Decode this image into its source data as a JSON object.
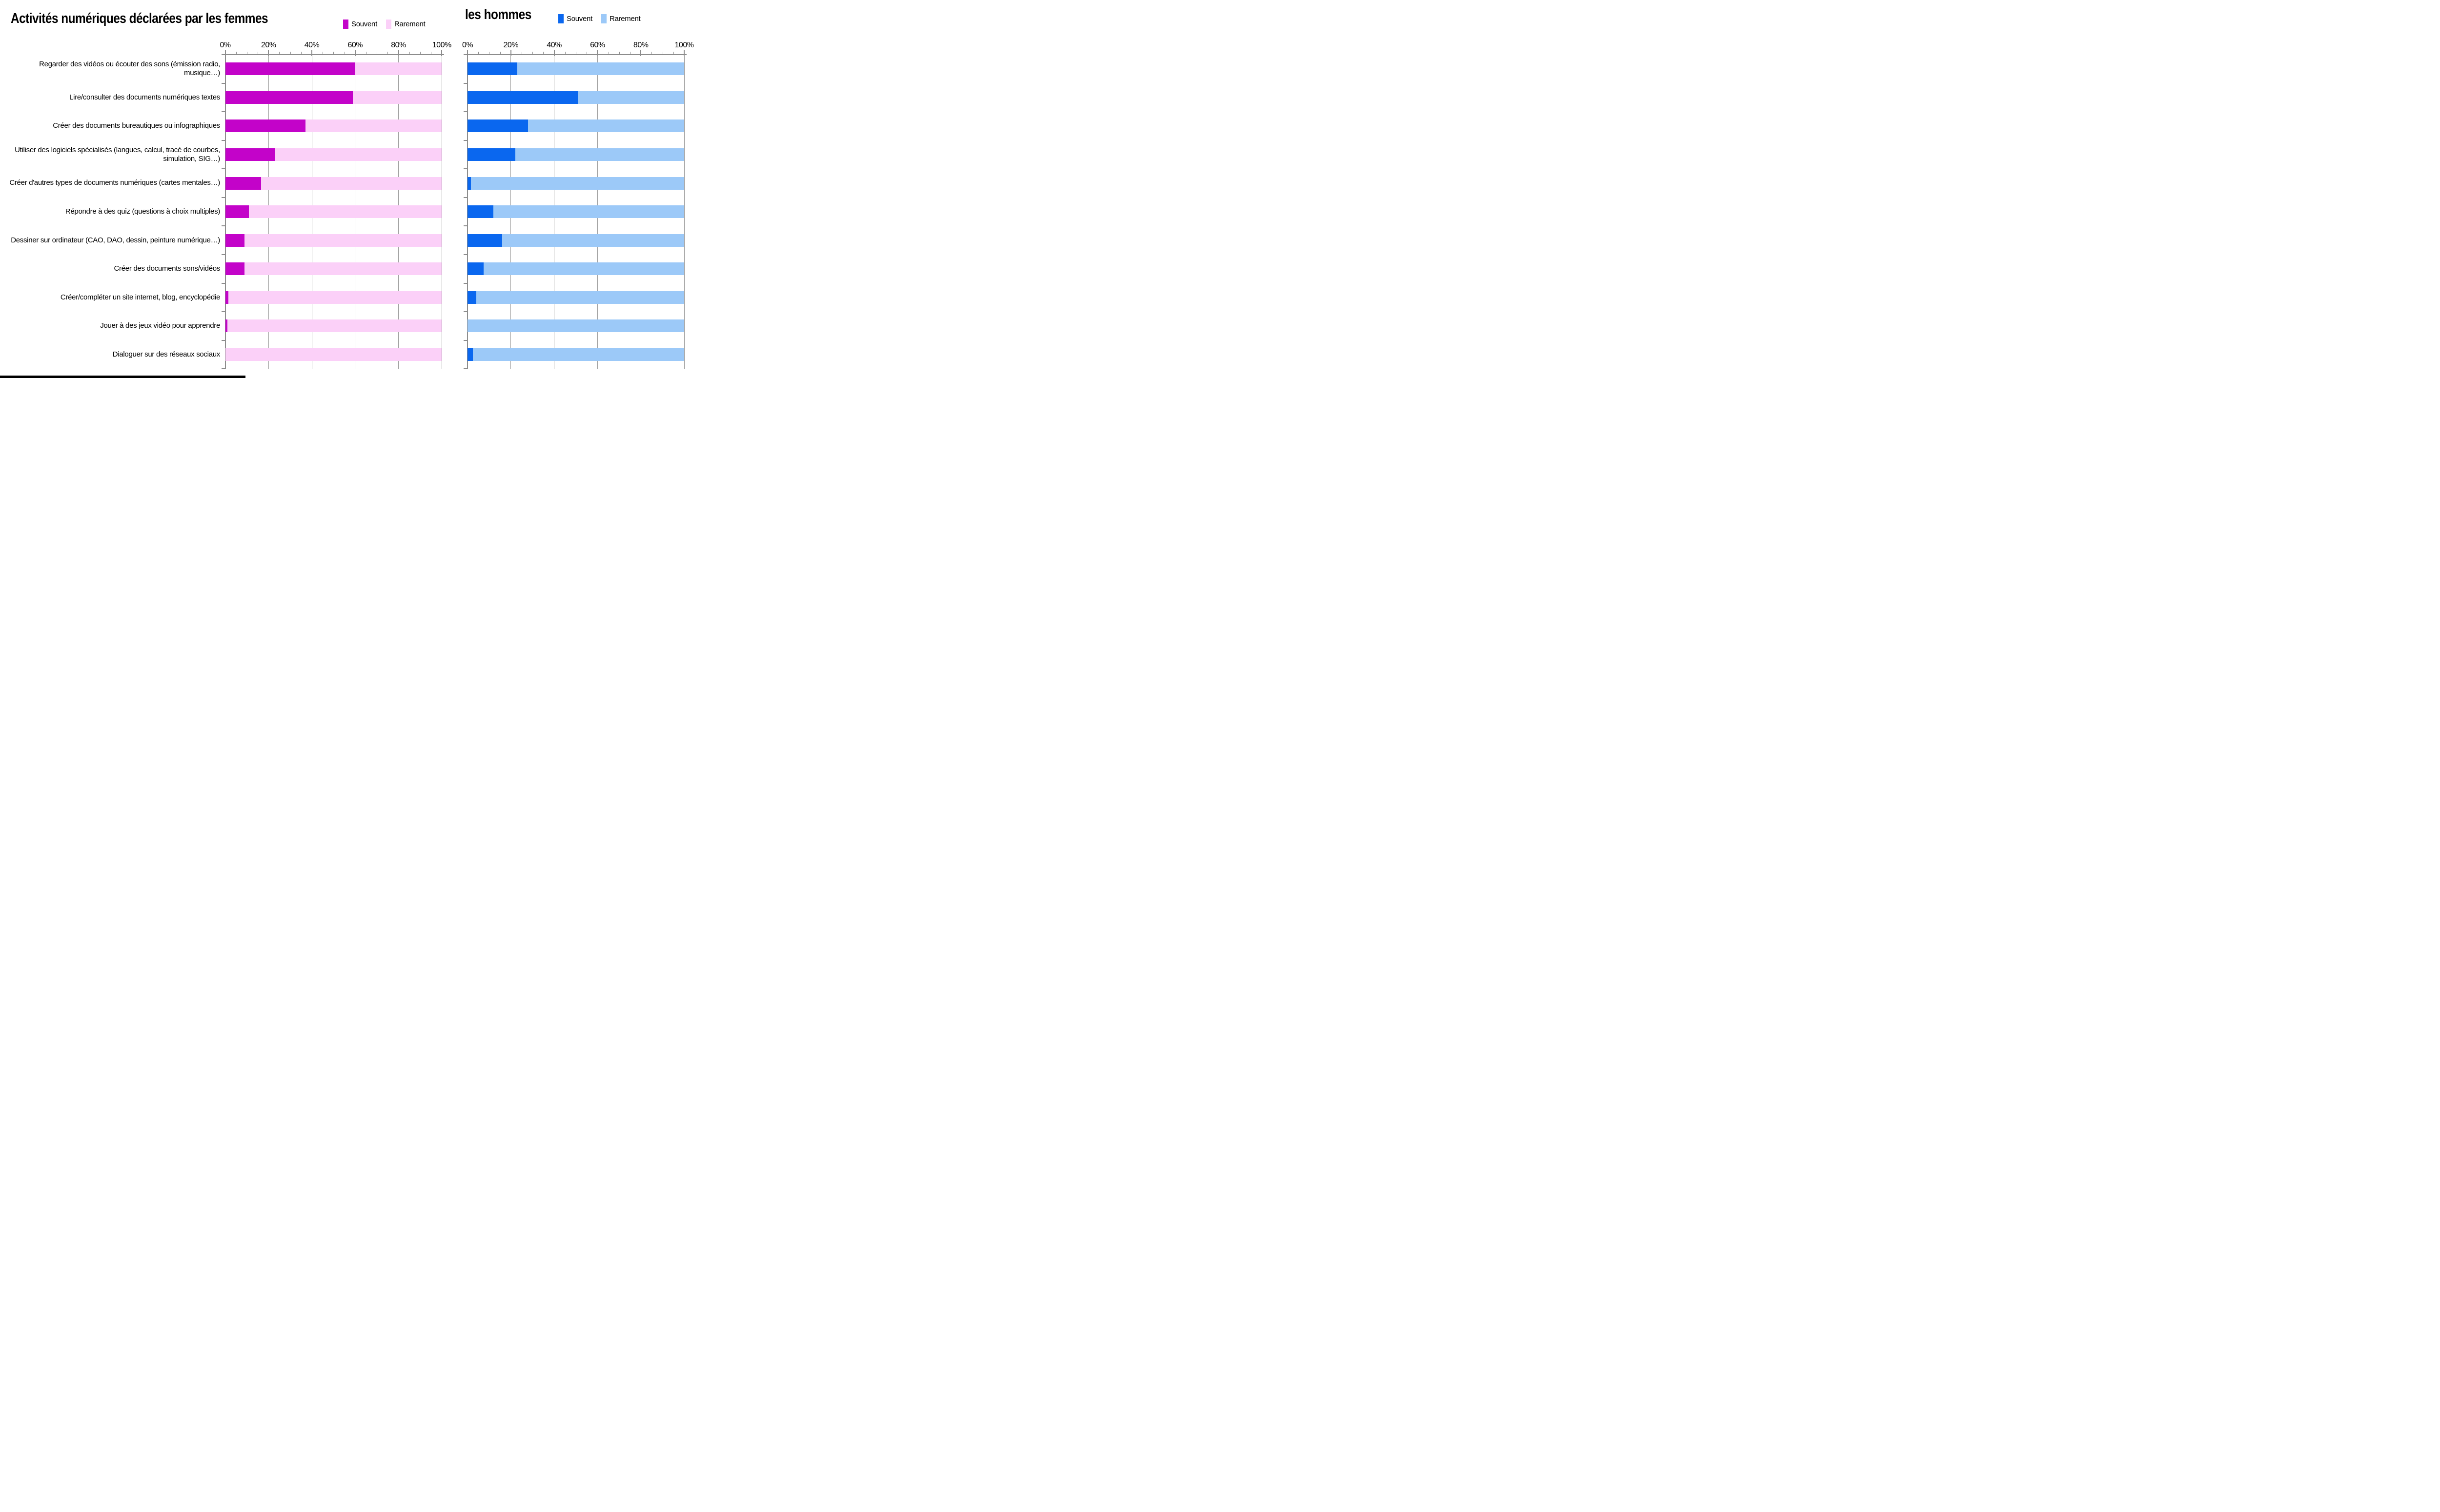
{
  "figure": {
    "left_title": "Activités numériques déclarées par les femmes",
    "right_title": "les hommes"
  },
  "chart_data": [
    {
      "type": "bar",
      "orientation": "horizontal",
      "stacked": true,
      "title": "Activités numériques déclarées par les femmes",
      "xlim": [
        0,
        100
      ],
      "x_ticks": [
        "0%",
        "20%",
        "40%",
        "60%",
        "80%",
        "100%"
      ],
      "minor_tick_interval_pct": 5,
      "grid": "vertical",
      "legend_position": "top-right",
      "categories": [
        "Regarder des vidéos ou écouter des sons (émission radio, musique…)",
        "Lire/consulter des documents numériques textes",
        "Créer des documents bureautiques ou infographiques",
        "Utiliser des logiciels spécialisés (langues, calcul, tracé de courbes, simulation, SIG…)",
        "Créer d'autres types de documents numériques (cartes mentales…)",
        "Répondre à des quiz (questions à choix multiples)",
        "Dessiner sur ordinateur (CAO, DAO, dessin, peinture numérique…)",
        "Créer des documents sons/vidéos",
        "Créer/compléter un site internet, blog, encyclopédie",
        "Jouer à des jeux vidéo pour apprendre",
        "Dialoguer sur des réseaux sociaux"
      ],
      "series": [
        {
          "name": "Souvent",
          "color": "#C303C9",
          "values": [
            60,
            59,
            37,
            23,
            16.5,
            11,
            9,
            9,
            1.5,
            1,
            0
          ]
        },
        {
          "name": "Rarement",
          "color": "#FBD0F8",
          "values": [
            40,
            41,
            63,
            77,
            83.5,
            89,
            91,
            91,
            98.5,
            99,
            100
          ]
        }
      ]
    },
    {
      "type": "bar",
      "orientation": "horizontal",
      "stacked": true,
      "title": "les hommes",
      "xlim": [
        0,
        100
      ],
      "x_ticks": [
        "0%",
        "20%",
        "40%",
        "60%",
        "80%",
        "100%"
      ],
      "minor_tick_interval_pct": 5,
      "grid": "vertical",
      "legend_position": "top-right",
      "categories": [
        "Regarder des vidéos ou écouter des sons (émission radio, musique…)",
        "Lire/consulter des documents numériques textes",
        "Créer des documents bureautiques ou infographiques",
        "Utiliser des logiciels spécialisés (langues, calcul, tracé de courbes, simulation, SIG…)",
        "Créer d'autres types de documents numériques (cartes mentales…)",
        "Répondre à des quiz (questions à choix multiples)",
        "Dessiner sur ordinateur (CAO, DAO, dessin, peinture numérique…)",
        "Créer des documents sons/vidéos",
        "Créer/compléter un site internet, blog, encyclopédie",
        "Jouer à des jeux vidéo pour apprendre",
        "Dialoguer sur des réseaux sociaux"
      ],
      "series": [
        {
          "name": "Souvent",
          "color": "#0A67EF",
          "values": [
            23,
            51,
            28,
            22,
            1.5,
            12,
            16,
            7.5,
            4,
            0,
            2.5
          ]
        },
        {
          "name": "Rarement",
          "color": "#9CC9F8",
          "values": [
            77,
            49,
            72,
            78,
            98.5,
            88,
            84,
            92.5,
            96,
            100,
            97.5
          ]
        }
      ]
    }
  ]
}
